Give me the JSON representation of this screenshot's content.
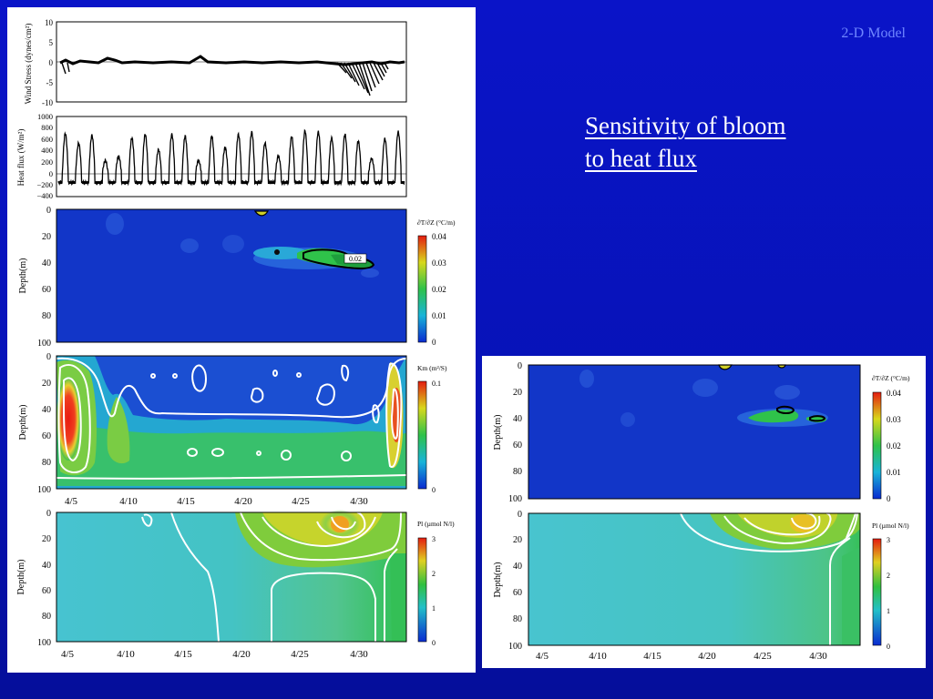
{
  "slide": {
    "tag": "2-D Model",
    "title_line1": "Sensitivity of bloom ",
    "title_line2": "to heat flux "
  },
  "colors": {
    "background": "#0713b8",
    "tag": "#6f86ff",
    "plot_field_blue": "#1236c8",
    "plot_field_teal": "#3fbfc8",
    "contour_white": "#ffffff",
    "contour_black": "#000000"
  },
  "left_panel": {
    "wind": {
      "ylabel": "Wind Stress (dynes/cm²)",
      "yticks": [
        "10",
        "5",
        "0",
        "-5",
        "-10"
      ]
    },
    "heat": {
      "ylabel": "Heat flux (W/m²)",
      "yticks": [
        "1000",
        "800",
        "600",
        "400",
        "200",
        "0",
        "−200",
        "−400"
      ]
    },
    "dtdz": {
      "ylabel": "Depth(m)",
      "yticks": [
        "0",
        "20",
        "40",
        "60",
        "80",
        "100"
      ],
      "colorbar_label": "∂T/∂Z (°C/m)",
      "colorbar_ticks": [
        "0.04",
        "0.03",
        "0.02",
        "0.01",
        "0"
      ],
      "contour_label": "0.02"
    },
    "km": {
      "ylabel": "Depth(m)",
      "yticks": [
        "0",
        "20",
        "40",
        "60",
        "80",
        "100"
      ],
      "colorbar_label": "Km (m²/S)",
      "colorbar_ticks": [
        "0.1",
        "0"
      ],
      "xticks": [
        "4/5",
        "4/10",
        "4/15",
        "4/20",
        "4/25",
        "4/30"
      ]
    },
    "pl": {
      "ylabel": "Depth(m)",
      "yticks": [
        "0",
        "20",
        "40",
        "60",
        "80",
        "100"
      ],
      "colorbar_label": "Pl (µmol N/l)",
      "colorbar_ticks": [
        "3",
        "2",
        "1",
        "0"
      ],
      "xticks": [
        "4/5",
        "4/10",
        "4/15",
        "4/20",
        "4/25",
        "4/30"
      ]
    }
  },
  "right_panel": {
    "dtdz": {
      "ylabel": "Depth(m)",
      "yticks": [
        "0",
        "20",
        "40",
        "60",
        "80",
        "100"
      ],
      "colorbar_label": "∂T/∂Z (°C/m)",
      "colorbar_ticks": [
        "0.04",
        "0.03",
        "0.02",
        "0.01",
        "0"
      ]
    },
    "pl": {
      "ylabel": "Depth(m)",
      "yticks": [
        "0",
        "20",
        "40",
        "60",
        "80",
        "100"
      ],
      "colorbar_label": "Pl (µmol N/l)",
      "colorbar_ticks": [
        "3",
        "2",
        "1",
        "0"
      ],
      "xticks": [
        "4/5",
        "4/10",
        "4/15",
        "4/20",
        "4/25",
        "4/30"
      ]
    }
  }
}
